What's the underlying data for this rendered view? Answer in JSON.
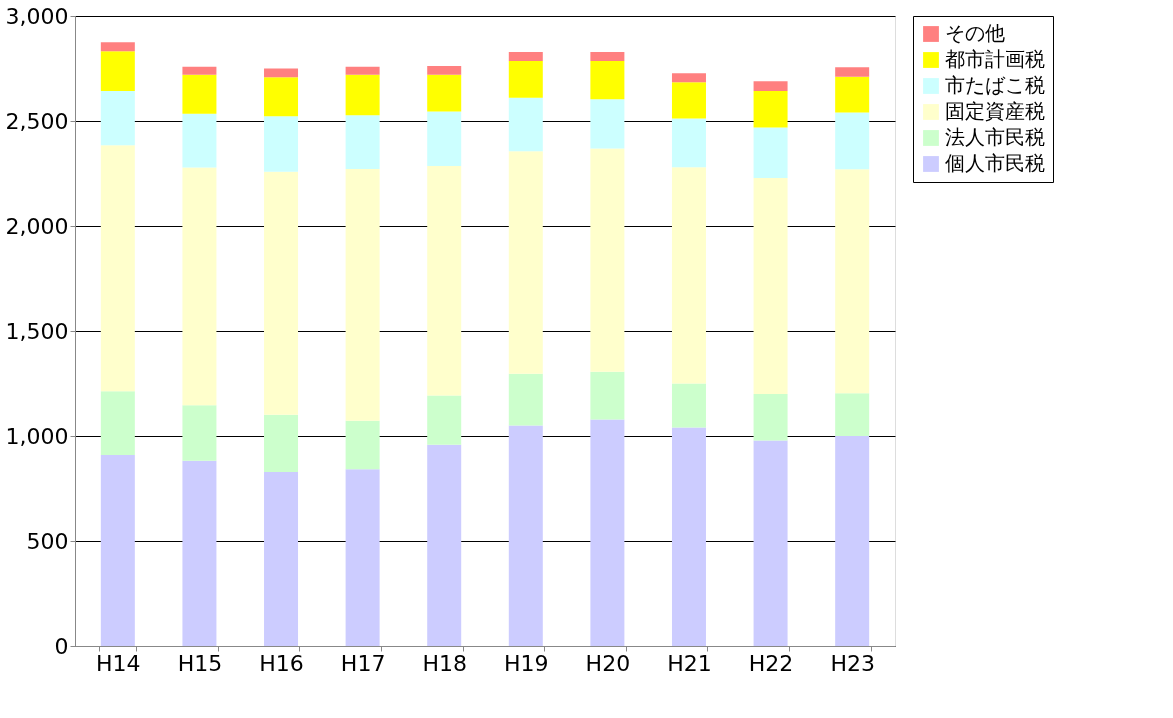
{
  "chart_data": {
    "type": "bar",
    "stacked": true,
    "categories": [
      "H14",
      "H15",
      "H16",
      "H17",
      "H18",
      "H19",
      "H20",
      "H21",
      "H22",
      "H23"
    ],
    "series": [
      {
        "name": "個人市民税",
        "color": "#ccccff",
        "values": [
          910,
          882,
          828,
          842,
          958,
          1050,
          1079,
          1040,
          978,
          1000
        ]
      },
      {
        "name": "法人市民税",
        "color": "#ccffcc",
        "values": [
          303,
          265,
          273,
          231,
          235,
          246,
          227,
          210,
          222,
          203
        ]
      },
      {
        "name": "固定資産税",
        "color": "#ffffcc",
        "values": [
          1171,
          1131,
          1157,
          1199,
          1093,
          1060,
          1063,
          1030,
          1028,
          1067
        ]
      },
      {
        "name": "市たばこ税",
        "color": "#ccffff",
        "values": [
          259,
          257,
          265,
          255,
          259,
          255,
          235,
          232,
          241,
          270
        ]
      },
      {
        "name": "都市計画税",
        "color": "#ffff00",
        "values": [
          189,
          185,
          185,
          193,
          175,
          175,
          182,
          173,
          174,
          171
        ]
      },
      {
        "name": "その他",
        "color": "#ff8080",
        "values": [
          43,
          38,
          42,
          38,
          42,
          42,
          42,
          42,
          46,
          45
        ]
      }
    ],
    "ylim": [
      0,
      3000
    ],
    "yticks": [
      0,
      500,
      {
        "value": 1000,
        "label": "1,000"
      },
      {
        "value": 1500,
        "label": "1,500"
      },
      {
        "value": 2000,
        "label": "2,000"
      },
      {
        "value": 2500,
        "label": "2,500"
      },
      {
        "value": 3000,
        "label": "3,000"
      }
    ],
    "grid": "y",
    "legend": "right"
  }
}
